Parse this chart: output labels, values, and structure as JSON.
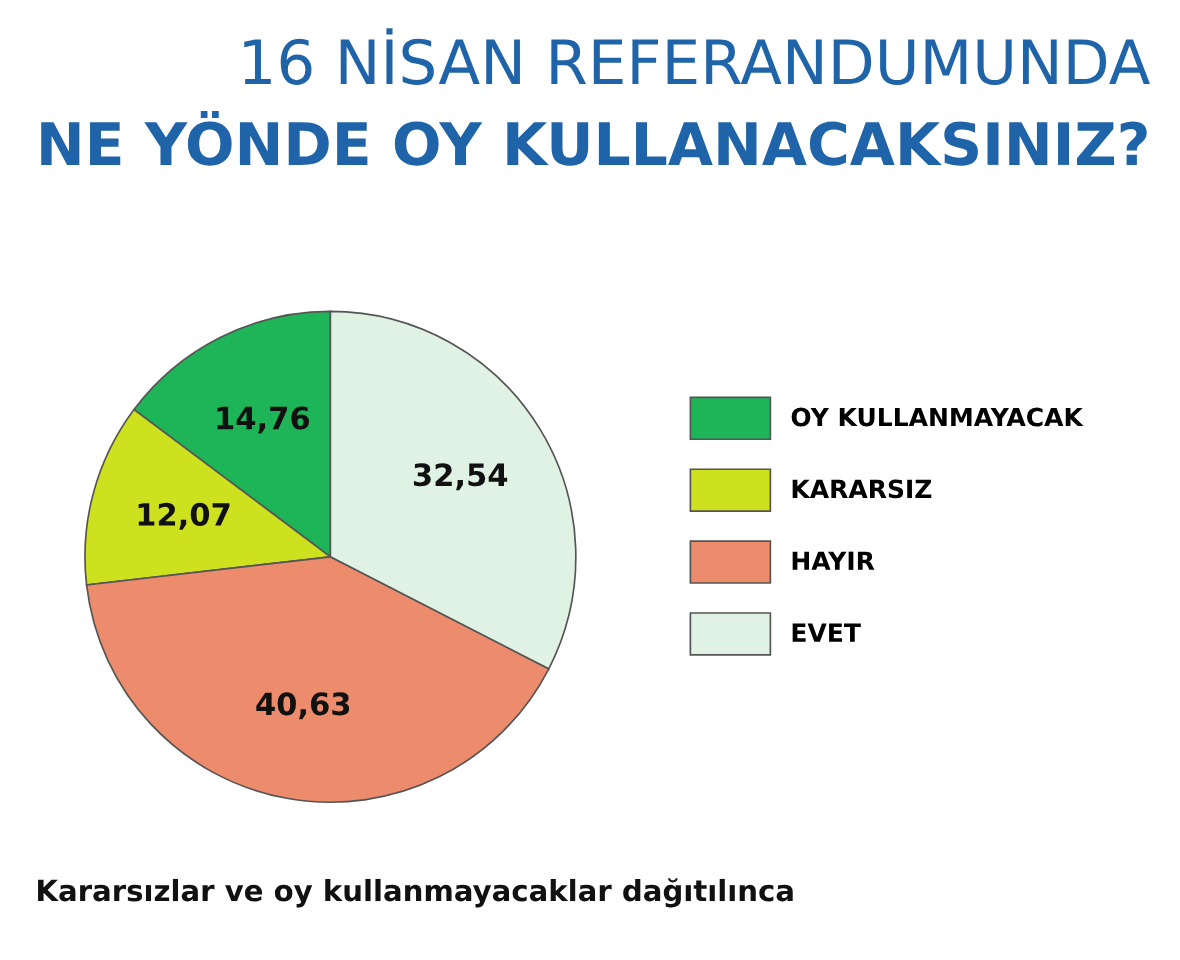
{
  "chart_data": {
    "type": "pie",
    "title": "16 NİSAN REFERANDUMUNDA",
    "subtitle": "NE YÖNDE OY KULLANACAKSINIZ?",
    "categories": [
      "OY KULLANMAYACAK",
      "KARARSIZ",
      "HAYIR",
      "EVET"
    ],
    "values": [
      14.76,
      12.07,
      40.63,
      32.54
    ],
    "value_labels": [
      "14,76",
      "12,07",
      "40,63",
      "32,54"
    ],
    "colors": [
      "#1db557",
      "#cde11f",
      "#ec8c6c",
      "#dff2e4"
    ],
    "legend": "right",
    "annotations": [
      "Kararsızlar ve oy kullanmayacaklar dağıtılınca"
    ]
  }
}
